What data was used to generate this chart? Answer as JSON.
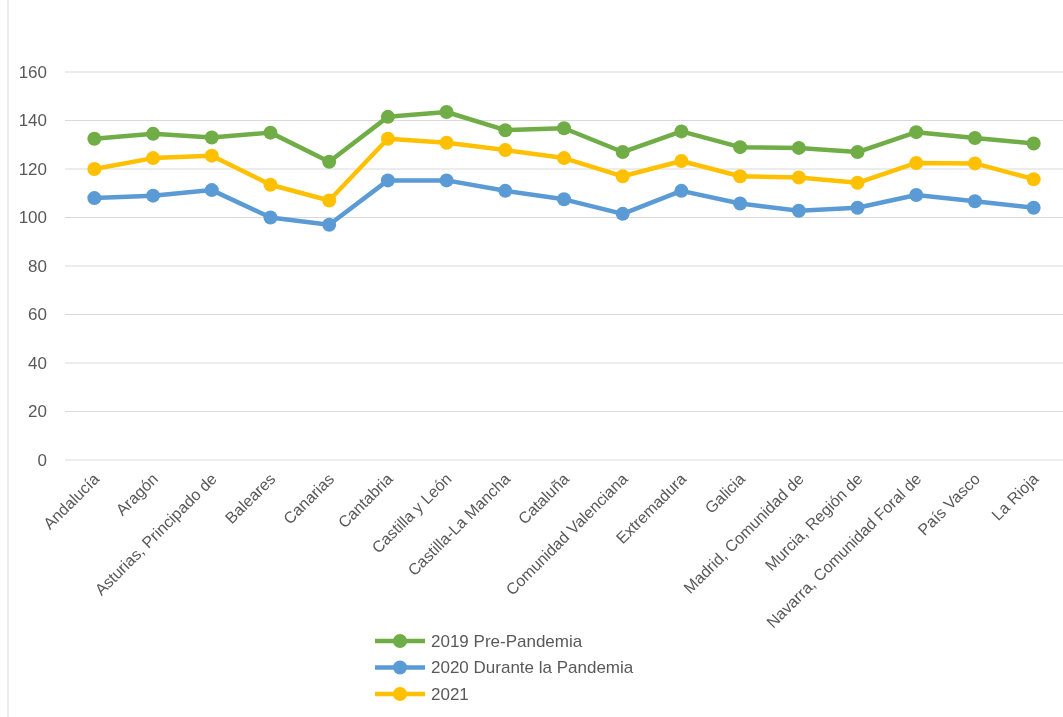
{
  "chart_data": {
    "type": "line",
    "categories": [
      "Andalucía",
      "Aragón",
      "Asturias, Principado de",
      "Baleares",
      "Canarias",
      "Cantabria",
      "Castilla y León",
      "Castilla-La Mancha",
      "Cataluña",
      "Comunidad Valenciana",
      "Extremadura",
      "Galicia",
      "Madrid, Comunidad de",
      "Murcia, Región de",
      "Navarra, Comunidad Foral de",
      "País Vasco",
      "La Rioja"
    ],
    "series": [
      {
        "name": "2019 Pre-Pandemia",
        "color": "#70ad47",
        "values": [
          132.5,
          134.5,
          133,
          135,
          123,
          141.5,
          143.5,
          136,
          136.8,
          127,
          135.5,
          129,
          128.7,
          127,
          135.2,
          132.8,
          130.5
        ]
      },
      {
        "name": "2020 Durante la Pandemia",
        "color": "#5b9bd5",
        "values": [
          108,
          109,
          111.3,
          100,
          97,
          115.3,
          115.3,
          111,
          107.5,
          101.5,
          111,
          105.8,
          102.8,
          104,
          109.3,
          106.7,
          104
        ]
      },
      {
        "name": "2021",
        "color": "#ffc000",
        "values": [
          120,
          124.5,
          125.5,
          113.5,
          107,
          132.5,
          130.8,
          127.8,
          124.5,
          117,
          123.3,
          117,
          116.5,
          114.3,
          122.5,
          122.3,
          115.8
        ]
      }
    ],
    "ylim": [
      0,
      160
    ],
    "yticks": [
      0,
      20,
      40,
      60,
      80,
      100,
      120,
      140,
      160
    ],
    "grid": "y",
    "legend": "bottom",
    "marker": "circle",
    "line_style": "solid"
  }
}
